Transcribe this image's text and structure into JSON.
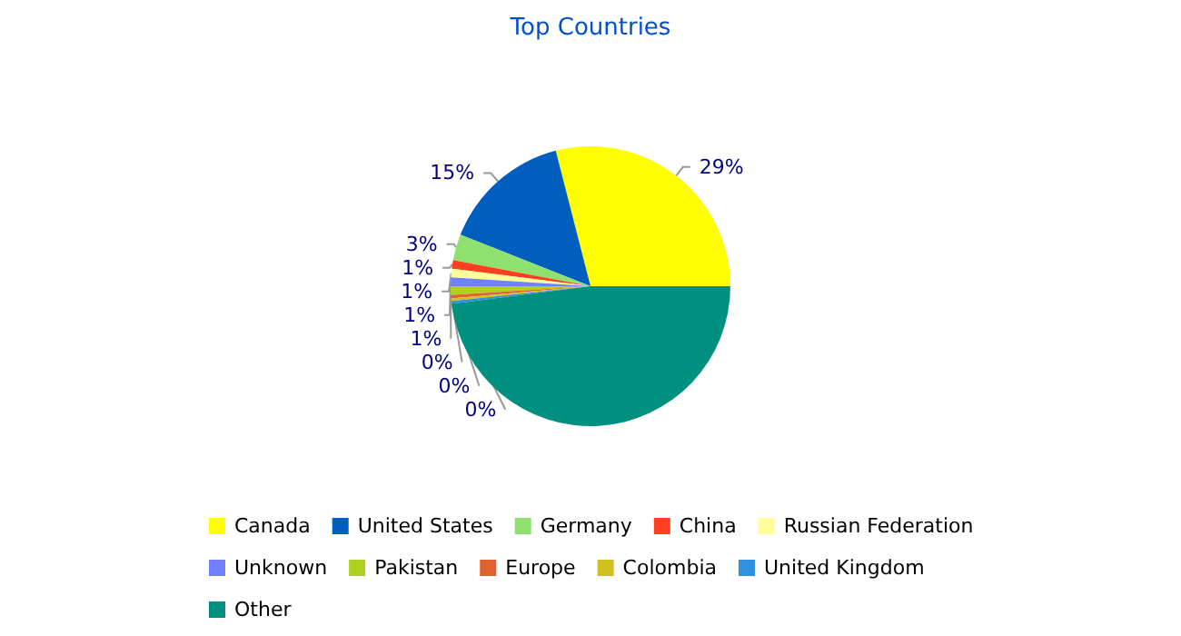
{
  "chart_data": {
    "type": "pie",
    "title": "Top Countries",
    "categories": [
      "Canada",
      "United States",
      "Germany",
      "China",
      "Russian Federation",
      "Unknown",
      "Pakistan",
      "Europe",
      "Colombia",
      "United Kingdom",
      "Other"
    ],
    "values": [
      29,
      15,
      3,
      1,
      1,
      1,
      1,
      0.4,
      0.3,
      0.3,
      48
    ],
    "colors": [
      "#ffff00",
      "#005ebf",
      "#90e070",
      "#ff4020",
      "#ffff99",
      "#7080ff",
      "#b0d020",
      "#e06030",
      "#d0c020",
      "#3090e0",
      "#009080"
    ],
    "value_labels": [
      "29%",
      "15%",
      "3%",
      "1%",
      "1%",
      "1%",
      "1%",
      "0%",
      "0%",
      "0%",
      null
    ],
    "legend": "bottom"
  }
}
